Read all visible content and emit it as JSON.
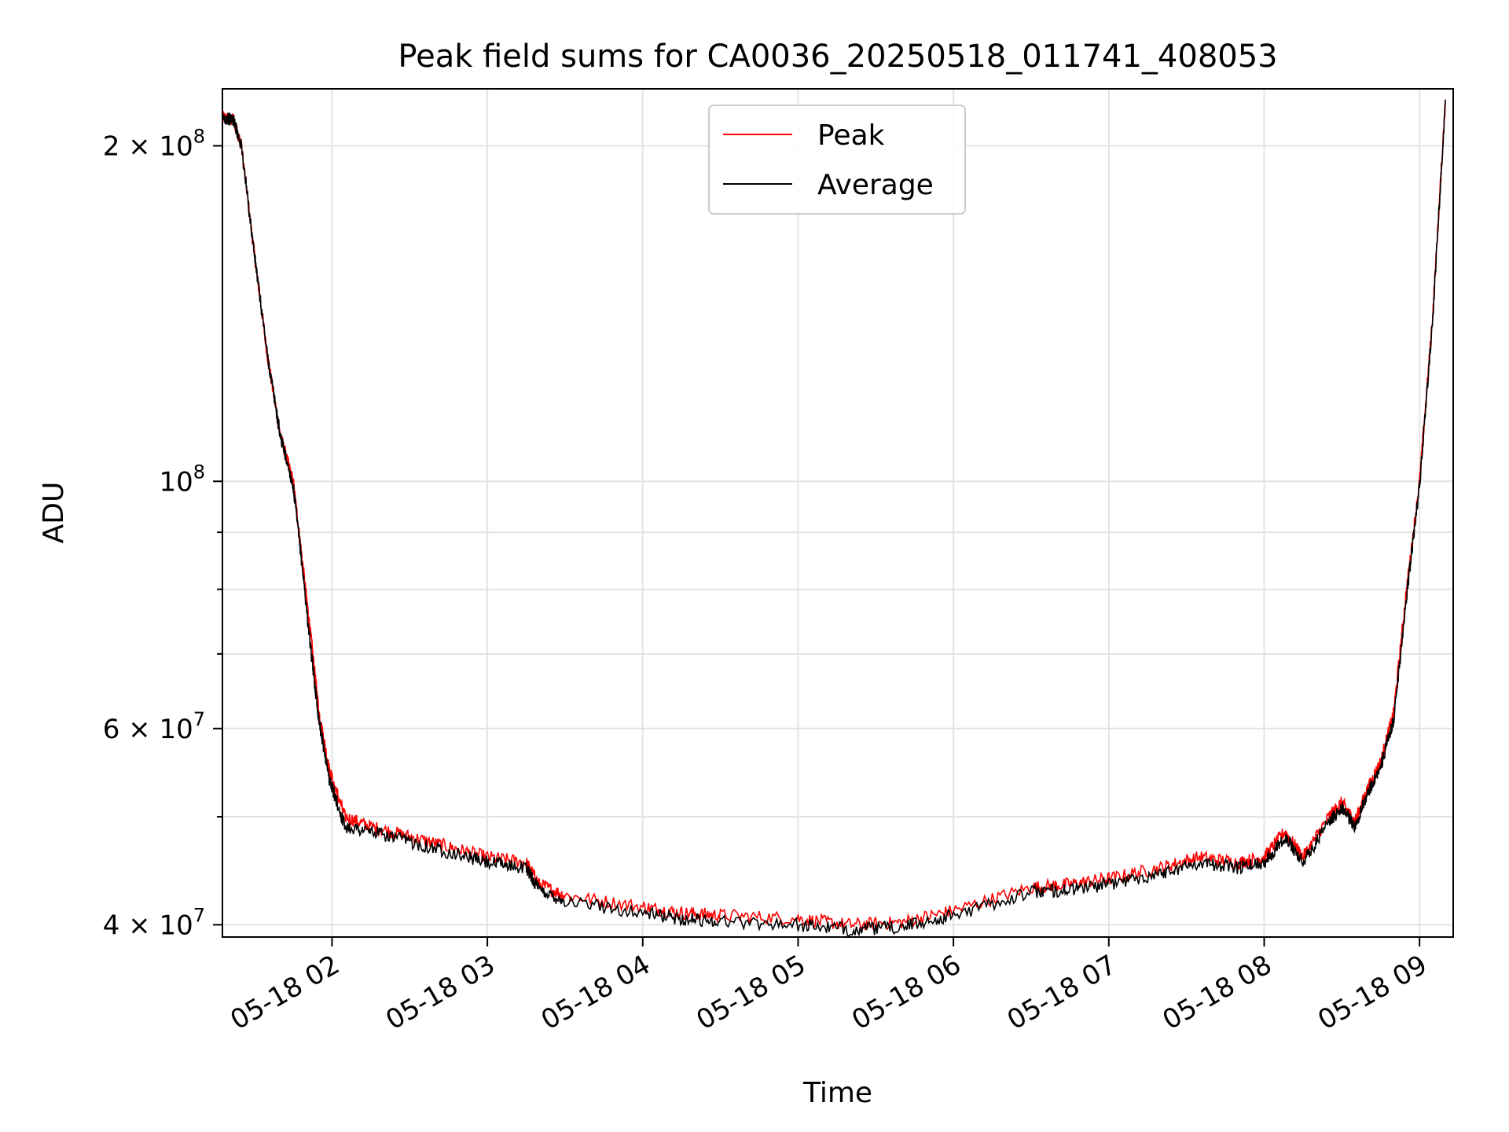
{
  "chart_data": {
    "type": "line",
    "title": "Peak field sums for CA0036_20250518_011741_408053",
    "xlabel": "Time",
    "ylabel": "ADU",
    "y_scale": "log",
    "ylim": [
      39000000,
      225000000
    ],
    "xlim": [
      "2025-05-18 01:17:41",
      "2025-05-18 09:13"
    ],
    "grid": true,
    "legend_position": "top-center",
    "x_ticks": [
      "05-18 02",
      "05-18 03",
      "05-18 04",
      "05-18 05",
      "05-18 06",
      "05-18 07",
      "05-18 08",
      "05-18 09"
    ],
    "x_tick_times": [
      "2025-05-18 02:00",
      "2025-05-18 03:00",
      "2025-05-18 04:00",
      "2025-05-18 05:00",
      "2025-05-18 06:00",
      "2025-05-18 07:00",
      "2025-05-18 08:00",
      "2025-05-18 09:00"
    ],
    "y_major_ticks": [
      {
        "value": 40000000,
        "mantissa": "4",
        "exponent": "7"
      },
      {
        "value": 60000000,
        "mantissa": "6",
        "exponent": "7"
      },
      {
        "value": 100000000,
        "mantissa": "",
        "exponent": "8"
      },
      {
        "value": 200000000,
        "mantissa": "2",
        "exponent": "8"
      }
    ],
    "y_minor_ticks": [
      50000000,
      70000000,
      80000000,
      90000000
    ],
    "x": [
      "2025-05-18 01:17:41",
      "2025-05-18 01:22",
      "2025-05-18 01:25",
      "2025-05-18 01:30",
      "2025-05-18 01:35",
      "2025-05-18 01:40",
      "2025-05-18 01:45",
      "2025-05-18 01:48",
      "2025-05-18 01:52",
      "2025-05-18 01:55",
      "2025-05-18 01:59",
      "2025-05-18 02:05",
      "2025-05-18 02:15",
      "2025-05-18 02:30",
      "2025-05-18 02:45",
      "2025-05-18 03:00",
      "2025-05-18 03:15",
      "2025-05-18 03:20",
      "2025-05-18 03:30",
      "2025-05-18 04:00",
      "2025-05-18 04:15",
      "2025-05-18 04:30",
      "2025-05-18 05:00",
      "2025-05-18 05:20",
      "2025-05-18 05:40",
      "2025-05-18 06:00",
      "2025-05-18 06:30",
      "2025-05-18 06:45",
      "2025-05-18 07:00",
      "2025-05-18 07:20",
      "2025-05-18 07:35",
      "2025-05-18 07:50",
      "2025-05-18 08:00",
      "2025-05-18 08:08",
      "2025-05-18 08:15",
      "2025-05-18 08:25",
      "2025-05-18 08:30",
      "2025-05-18 08:35",
      "2025-05-18 08:40",
      "2025-05-18 08:45",
      "2025-05-18 08:50",
      "2025-05-18 08:55",
      "2025-05-18 09:00",
      "2025-05-18 09:05",
      "2025-05-18 09:10"
    ],
    "series": [
      {
        "name": "Peak",
        "color": "#ff0000",
        "values": [
          212000000,
          211000000,
          200000000,
          160000000,
          130000000,
          110000000,
          100000000,
          87000000,
          72000000,
          62000000,
          55000000,
          50000000,
          49000000,
          48000000,
          47000000,
          46000000,
          45500000,
          43500000,
          42500000,
          41500000,
          41000000,
          40800000,
          40500000,
          40000000,
          40200000,
          41200000,
          43200000,
          43500000,
          44000000,
          45000000,
          46000000,
          45500000,
          46000000,
          48500000,
          46000000,
          50000000,
          51500000,
          49500000,
          53000000,
          56000000,
          62000000,
          80000000,
          100000000,
          140000000,
          220000000
        ]
      },
      {
        "name": "Average",
        "color": "#000000",
        "values": [
          212000000,
          211000000,
          200000000,
          160000000,
          130000000,
          110000000,
          99000000,
          86000000,
          70000000,
          61000000,
          54000000,
          49000000,
          48500000,
          47500000,
          46500000,
          45500000,
          45000000,
          43000000,
          42000000,
          41000000,
          40500000,
          40300000,
          40000000,
          39600000,
          39800000,
          40800000,
          42800000,
          43000000,
          43500000,
          44500000,
          45500000,
          45000000,
          45500000,
          48000000,
          45500000,
          49500000,
          51000000,
          49000000,
          52500000,
          55500000,
          61000000,
          79000000,
          99000000,
          139000000,
          220000000
        ]
      }
    ]
  }
}
